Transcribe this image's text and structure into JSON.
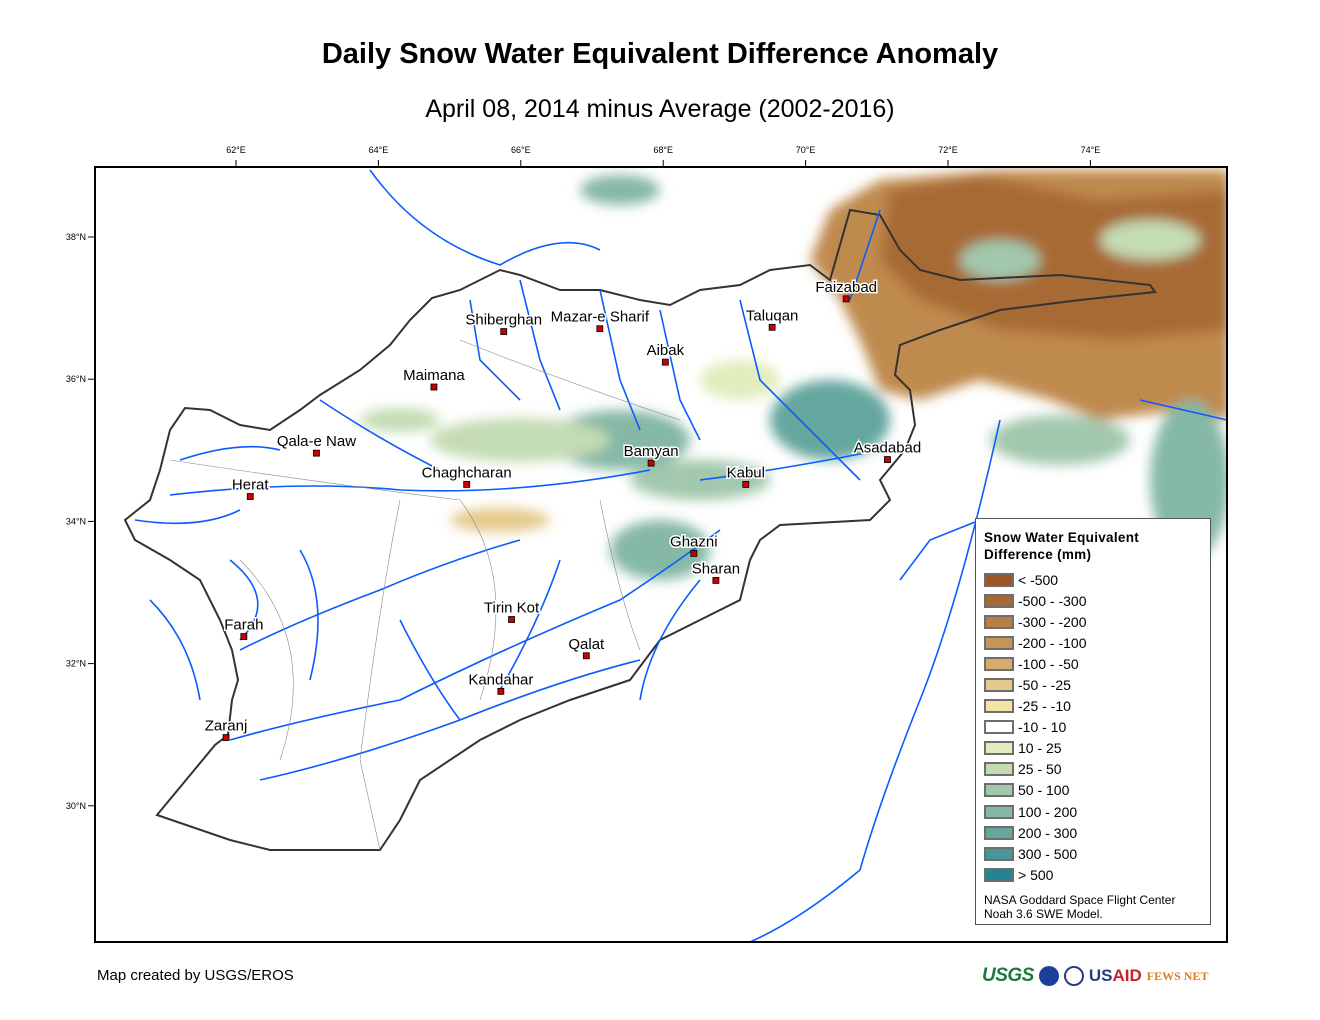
{
  "title": "Daily Snow Water Equivalent Difference Anomaly",
  "subtitle": "April 08, 2014 minus Average (2002-2016)",
  "longitude_ticks": [
    {
      "value": 62,
      "label": "62°E"
    },
    {
      "value": 64,
      "label": "64°E"
    },
    {
      "value": 66,
      "label": "66°E"
    },
    {
      "value": 68,
      "label": "68°E"
    },
    {
      "value": 70,
      "label": "70°E"
    },
    {
      "value": 72,
      "label": "72°E"
    },
    {
      "value": 74,
      "label": "74°E"
    }
  ],
  "latitude_ticks": [
    {
      "value": 38,
      "label": "38°N"
    },
    {
      "value": 36,
      "label": "36°N"
    },
    {
      "value": 34,
      "label": "34°N"
    },
    {
      "value": 32,
      "label": "32°N"
    },
    {
      "value": 30,
      "label": "30°N"
    }
  ],
  "cities": [
    {
      "name": "Faizabad",
      "lon": 70.57,
      "lat": 37.13
    },
    {
      "name": "Taluqan",
      "lon": 69.53,
      "lat": 36.73
    },
    {
      "name": "Mazar-e Sharif",
      "lon": 67.11,
      "lat": 36.71
    },
    {
      "name": "Shiberghan",
      "lon": 65.76,
      "lat": 36.67
    },
    {
      "name": "Aibak",
      "lon": 68.03,
      "lat": 36.24
    },
    {
      "name": "Maimana",
      "lon": 64.78,
      "lat": 35.89
    },
    {
      "name": "Qala-e Naw",
      "lon": 63.13,
      "lat": 34.96
    },
    {
      "name": "Bamyan",
      "lon": 67.83,
      "lat": 34.82
    },
    {
      "name": "Asadabad",
      "lon": 71.15,
      "lat": 34.87
    },
    {
      "name": "Herat",
      "lon": 62.2,
      "lat": 34.35
    },
    {
      "name": "Chaghcharan",
      "lon": 65.24,
      "lat": 34.52
    },
    {
      "name": "Kabul",
      "lon": 69.16,
      "lat": 34.52
    },
    {
      "name": "Ghazni",
      "lon": 68.43,
      "lat": 33.55
    },
    {
      "name": "Sharan",
      "lon": 68.74,
      "lat": 33.17
    },
    {
      "name": "Tirin Kot",
      "lon": 65.87,
      "lat": 32.62
    },
    {
      "name": "Farah",
      "lon": 62.11,
      "lat": 32.38
    },
    {
      "name": "Qalat",
      "lon": 66.92,
      "lat": 32.11
    },
    {
      "name": "Kandahar",
      "lon": 65.72,
      "lat": 31.61
    },
    {
      "name": "Zaranj",
      "lon": 61.86,
      "lat": 30.96
    }
  ],
  "legend": {
    "title_line1": "Snow Water Equivalent",
    "title_line2": "Difference (mm)",
    "classes": [
      {
        "label": "< -500",
        "color": "#9c5524"
      },
      {
        "label": "-500 - -300",
        "color": "#a86a35"
      },
      {
        "label": "-300 - -200",
        "color": "#b77e47"
      },
      {
        "label": "-200 - -100",
        "color": "#c69458"
      },
      {
        "label": "-100 - -50",
        "color": "#d6ab6e"
      },
      {
        "label": "-50 - -25",
        "color": "#e5c98b"
      },
      {
        "label": "-25 - -10",
        "color": "#f2e3a7"
      },
      {
        "label": "-10 - 10",
        "color": "#ffffff"
      },
      {
        "label": "10 - 25",
        "color": "#e1edbd"
      },
      {
        "label": "25 - 50",
        "color": "#c4dcb4"
      },
      {
        "label": "50 - 100",
        "color": "#a2c8ad"
      },
      {
        "label": "100 - 200",
        "color": "#85b8a6"
      },
      {
        "label": "200 - 300",
        "color": "#65a79f"
      },
      {
        "label": "300 - 500",
        "color": "#4a9598"
      },
      {
        "label": "> 500",
        "color": "#268490"
      }
    ],
    "credit_line1": "NASA Goddard Space Flight Center",
    "credit_line2": "Noah 3.6 SWE Model."
  },
  "footer": "Map created by USGS/EROS",
  "logos": {
    "usgs": "USGS",
    "usaid_us": "US",
    "usaid_aid": "AID",
    "fews": "FEWS NET"
  },
  "colors": {
    "river": "#0a5cff",
    "border": "#333333",
    "city_dot": "#cc0000"
  }
}
